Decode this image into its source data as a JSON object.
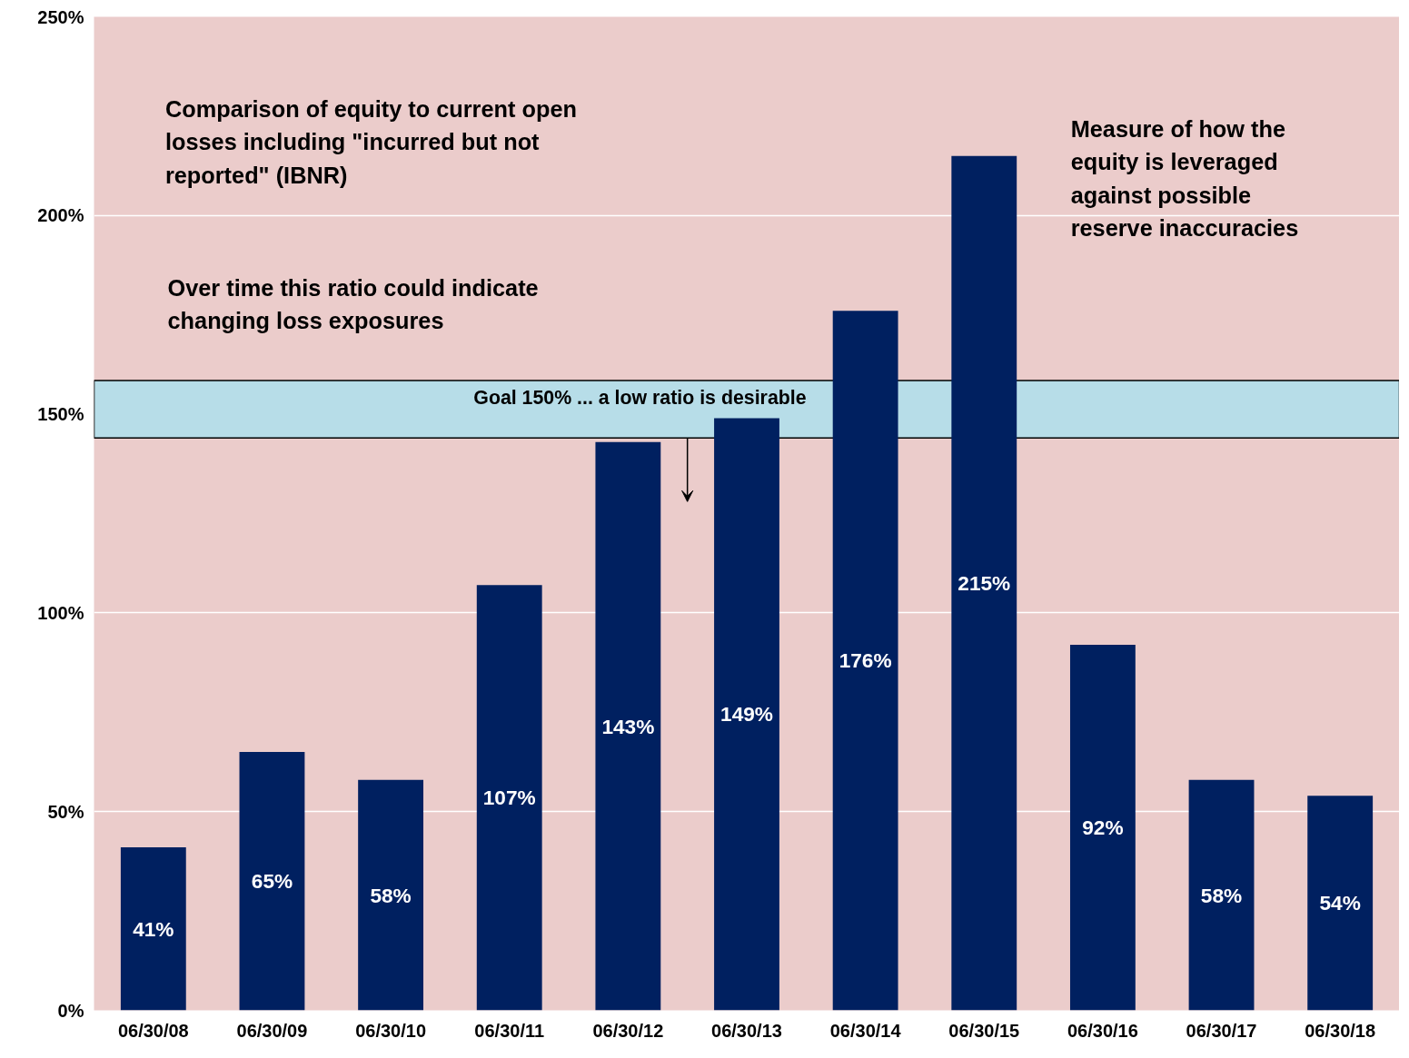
{
  "chart_data": {
    "type": "bar",
    "categories": [
      "06/30/08",
      "06/30/09",
      "06/30/10",
      "06/30/11",
      "06/30/12",
      "06/30/13",
      "06/30/14",
      "06/30/15",
      "06/30/16",
      "06/30/17",
      "06/30/18"
    ],
    "values": [
      41,
      65,
      58,
      107,
      143,
      149,
      176,
      215,
      92,
      58,
      54
    ],
    "value_labels": [
      "41%",
      "65%",
      "58%",
      "107%",
      "143%",
      "149%",
      "176%",
      "215%",
      "92%",
      "58%",
      "54%"
    ],
    "color": "#002060",
    "ylim": [
      0,
      250
    ],
    "yticks": [
      {
        "value": 0,
        "label": "0%"
      },
      {
        "value": 50,
        "label": "50%"
      },
      {
        "value": 100,
        "label": "100%"
      },
      {
        "value": 150,
        "label": "150%"
      },
      {
        "value": 200,
        "label": "200%"
      },
      {
        "value": 250,
        "label": "250%"
      }
    ],
    "grid": "y",
    "bands": [
      {
        "axis": "y",
        "from": 144,
        "to": 158.5,
        "label": "Goal 150% ... a low ratio is desirable",
        "color": "#b7dde8"
      }
    ],
    "annotations": [
      "Comparison of equity to current open\nlosses including \"incurred but not\nreported\" (IBNR)",
      "Over time this ratio could indicate\nchanging loss exposures",
      "Measure of how the\nequity is leveraged\nagainst possible\nreserve inaccuracies"
    ]
  }
}
